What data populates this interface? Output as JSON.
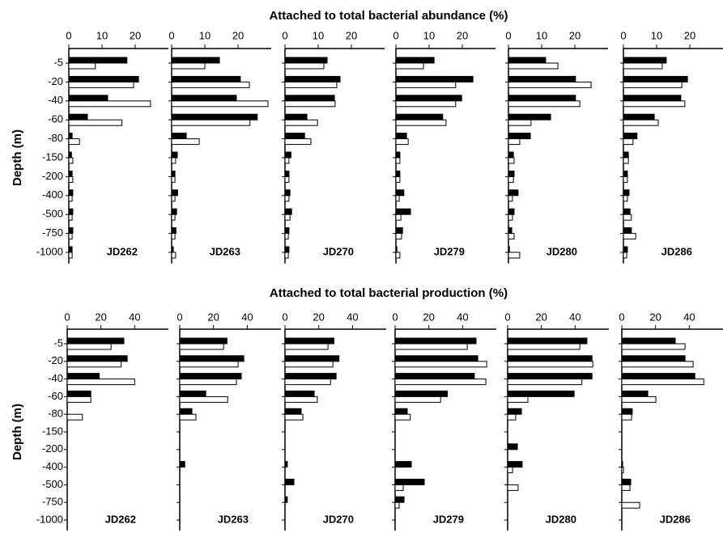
{
  "chart_data": [
    {
      "type": "bar",
      "orientation": "horizontal",
      "title": "Attached to total bacterial abundance (%)",
      "ylabel": "Depth (m)",
      "categories": [
        "-5",
        "-20",
        "-40",
        "-60",
        "-80",
        "-150",
        "-200",
        "-400",
        "-500",
        "-750",
        "-1000"
      ],
      "xlim": [
        0,
        30
      ],
      "xticks": [
        0,
        10,
        20
      ],
      "panels": [
        {
          "label": "JD262",
          "series": [
            {
              "color": "#000000",
              "values": [
                17.5,
                21,
                11.7,
                5.6,
                1,
                0.8,
                1,
                1.2,
                1.2,
                1.2,
                1
              ]
            },
            {
              "color": "#ffffff",
              "values": [
                8,
                19.5,
                24.6,
                16,
                3.2,
                1.2,
                1.2,
                1,
                1,
                1,
                1
              ]
            }
          ]
        },
        {
          "label": "JD263",
          "series": [
            {
              "color": "#000000",
              "values": [
                14.4,
                20.7,
                19.5,
                25.8,
                4.4,
                1.7,
                1,
                1.8,
                1.5,
                1.3,
                0.5
              ]
            },
            {
              "color": "#ffffff",
              "values": [
                10,
                23.4,
                29,
                23.6,
                8.3,
                1.2,
                1,
                1,
                1,
                1,
                1.2
              ]
            }
          ]
        },
        {
          "label": "JD270",
          "series": [
            {
              "color": "#000000",
              "values": [
                12.7,
                16.6,
                14.9,
                6.6,
                5.9,
                1.8,
                1.2,
                1.5,
                2,
                1.2,
                1.2
              ]
            },
            {
              "color": "#ffffff",
              "values": [
                11.7,
                15.6,
                15.1,
                9.8,
                7.8,
                1.2,
                1.2,
                1.2,
                1.5,
                1,
                1
              ]
            }
          ]
        },
        {
          "label": "JD279",
          "series": [
            {
              "color": "#000000",
              "values": [
                11.5,
                23.2,
                19.8,
                14.1,
                3.2,
                1.2,
                1.2,
                2.4,
                4.4,
                2,
                0.3
              ]
            },
            {
              "color": "#ffffff",
              "values": [
                8.3,
                18,
                18,
                15.1,
                3.7,
                1.2,
                1.2,
                1,
                1.5,
                1.7,
                1.2
              ]
            }
          ]
        },
        {
          "label": "JD280",
          "series": [
            {
              "color": "#000000",
              "values": [
                11.2,
                20.2,
                20.2,
                12.7,
                6.6,
                1.5,
                1.7,
                2.9,
                1.7,
                1,
                0.3
              ]
            },
            {
              "color": "#ffffff",
              "values": [
                14.9,
                24.9,
                21.5,
                6.8,
                3.4,
                1.7,
                1.5,
                1.2,
                1.2,
                1.7,
                3.4
              ]
            }
          ]
        },
        {
          "label": "JD286",
          "series": [
            {
              "color": "#000000",
              "values": [
                12.9,
                19.3,
                17.3,
                9.3,
                4.1,
                1.5,
                1.2,
                1.7,
                2,
                2.4,
                1.2
              ]
            },
            {
              "color": "#ffffff",
              "values": [
                11.7,
                17.6,
                18.5,
                10.5,
                2.9,
                1.5,
                1.2,
                1.2,
                2.4,
                3.7,
                1
              ]
            }
          ]
        }
      ]
    },
    {
      "type": "bar",
      "orientation": "horizontal",
      "title": "Attached to total bacterial production (%)",
      "ylabel": "Depth (m)",
      "categories": [
        "-5",
        "-20",
        "-40",
        "-60",
        "-80",
        "-150",
        "-200",
        "-400",
        "-500",
        "-750",
        "-1000"
      ],
      "xlim": [
        0,
        60
      ],
      "xticks": [
        0,
        20,
        40
      ],
      "panels": [
        {
          "label": "JD262",
          "series": [
            {
              "color": "#000000",
              "values": [
                33.6,
                35.6,
                19,
                14,
                null,
                null,
                null,
                null,
                null,
                null,
                null
              ]
            },
            {
              "color": "#ffffff",
              "values": [
                26,
                32,
                40,
                14,
                9,
                null,
                null,
                null,
                null,
                null,
                null
              ]
            }
          ]
        },
        {
          "label": "JD263",
          "series": [
            {
              "color": "#000000",
              "values": [
                28,
                38,
                36.5,
                15.4,
                7.2,
                null,
                null,
                3,
                null,
                null,
                null
              ]
            },
            {
              "color": "#ffffff",
              "values": [
                26,
                34.6,
                33.6,
                28.4,
                9.6,
                null,
                null,
                null,
                null,
                null,
                null
              ]
            }
          ]
        },
        {
          "label": "JD270",
          "series": [
            {
              "color": "#000000",
              "values": [
                29,
                32,
                30.3,
                17.3,
                9.6,
                null,
                null,
                1.4,
                5.3,
                1.4,
                null
              ]
            },
            {
              "color": "#ffffff",
              "values": [
                25.5,
                28.4,
                27,
                19.2,
                10.6,
                null,
                null,
                null,
                null,
                null,
                null
              ]
            }
          ]
        },
        {
          "label": "JD279",
          "series": [
            {
              "color": "#000000",
              "values": [
                48,
                49,
                47,
                31,
                7.2,
                null,
                null,
                9.6,
                17.3,
                5.3,
                null
              ]
            },
            {
              "color": "#ffffff",
              "values": [
                42.8,
                54.3,
                53.8,
                27,
                9,
                null,
                null,
                null,
                4.8,
                2.4,
                null
              ]
            }
          ]
        },
        {
          "label": "JD280",
          "series": [
            {
              "color": "#000000",
              "values": [
                47,
                50,
                50,
                39.4,
                8.2,
                null,
                5.8,
                8.6,
                null,
                null,
                null
              ]
            },
            {
              "color": "#ffffff",
              "values": [
                42.8,
                50.5,
                44,
                12,
                4.8,
                null,
                null,
                2.9,
                6.2,
                null,
                null
              ]
            }
          ]
        },
        {
          "label": "JD286",
          "series": [
            {
              "color": "#000000",
              "values": [
                31.7,
                37.5,
                43.3,
                15.4,
                6.2,
                null,
                null,
                0.5,
                5.3,
                null,
                null
              ]
            },
            {
              "color": "#ffffff",
              "values": [
                37.5,
                42.3,
                48.6,
                20.2,
                5.8,
                null,
                null,
                1,
                4.8,
                10.6,
                null
              ]
            }
          ]
        }
      ]
    }
  ]
}
